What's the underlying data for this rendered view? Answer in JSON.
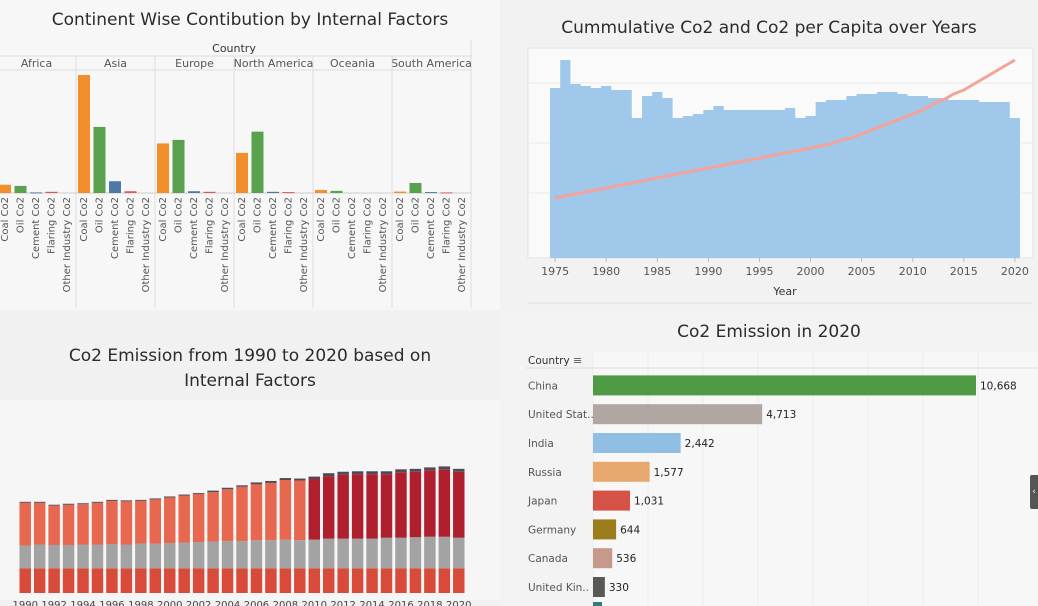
{
  "panels": {
    "p1": {
      "title": "Continent Wise Contibution by Internal Factors"
    },
    "p2": {
      "title": "Cummulative Co2 and Co2 per Capita over Years"
    },
    "p3": {
      "title": "Co2 Emission  from 1990 to 2020 based on Internal Factors"
    },
    "p4": {
      "title": "Co2 Emission in 2020"
    }
  },
  "colors": {
    "coal": "#f28e2b",
    "oil": "#59a14f",
    "cement": "#4e79a7",
    "flaring": "#e15759",
    "other": "#b07aa1",
    "area": "#9fc8eb",
    "line": "#f5a39a",
    "stack_top": "#4c4c57",
    "stack_gray": "#a3a3a3",
    "stack_base": "#d84b3a"
  },
  "chart_data": [
    {
      "type": "bar",
      "title": "Continent Wise Contibution by Internal Factors",
      "column_header": "Country",
      "groups": [
        "Africa",
        "Asia",
        "Europe",
        "North America",
        "Oceania",
        "South America"
      ],
      "categories": [
        "Coal Co2",
        "Oil Co2",
        "Cement Co2",
        "Flaring Co2",
        "Other Industry Co2"
      ],
      "series": [
        {
          "name": "Africa",
          "values": [
            0.07,
            0.06,
            0.005,
            0.01,
            0.0
          ]
        },
        {
          "name": "Asia",
          "values": [
            1.0,
            0.56,
            0.1,
            0.015,
            0.0
          ]
        },
        {
          "name": "Europe",
          "values": [
            0.42,
            0.45,
            0.015,
            0.01,
            0.0
          ]
        },
        {
          "name": "North America",
          "values": [
            0.34,
            0.52,
            0.01,
            0.008,
            0.0
          ]
        },
        {
          "name": "Oceania",
          "values": [
            0.025,
            0.018,
            0.0,
            0.0,
            0.0
          ]
        },
        {
          "name": "South America",
          "values": [
            0.012,
            0.085,
            0.008,
            0.005,
            0.0
          ]
        }
      ]
    },
    {
      "type": "area",
      "title": "Cummulative Co2 and Co2 per Capita over Years",
      "xlabel": "Year",
      "x_ticks": [
        "1975",
        "1980",
        "1985",
        "1990",
        "1995",
        "2000",
        "2005",
        "2010",
        "2015",
        "2020"
      ],
      "x": [
        1975,
        1976,
        1977,
        1978,
        1979,
        1980,
        1981,
        1982,
        1983,
        1984,
        1985,
        1986,
        1987,
        1988,
        1989,
        1990,
        1991,
        1992,
        1993,
        1994,
        1995,
        1996,
        1997,
        1998,
        1999,
        2000,
        2001,
        2002,
        2003,
        2004,
        2005,
        2006,
        2007,
        2008,
        2009,
        2010,
        2011,
        2012,
        2013,
        2014,
        2015,
        2016,
        2017,
        2018,
        2019,
        2020
      ],
      "series": [
        {
          "values": [
            0.85,
            0.99,
            0.87,
            0.86,
            0.85,
            0.86,
            0.84,
            0.84,
            0.7,
            0.81,
            0.83,
            0.8,
            0.7,
            0.71,
            0.72,
            0.74,
            0.76,
            0.74,
            0.74,
            0.74,
            0.74,
            0.74,
            0.74,
            0.75,
            0.7,
            0.71,
            0.78,
            0.79,
            0.79,
            0.81,
            0.82,
            0.82,
            0.83,
            0.83,
            0.82,
            0.81,
            0.81,
            0.8,
            0.8,
            0.79,
            0.79,
            0.79,
            0.78,
            0.78,
            0.78,
            0.7
          ]
        },
        {
          "values": [
            0.3,
            0.31,
            0.32,
            0.33,
            0.34,
            0.35,
            0.36,
            0.37,
            0.38,
            0.39,
            0.4,
            0.41,
            0.42,
            0.43,
            0.44,
            0.45,
            0.46,
            0.47,
            0.48,
            0.49,
            0.5,
            0.51,
            0.52,
            0.53,
            0.54,
            0.55,
            0.56,
            0.57,
            0.59,
            0.6,
            0.62,
            0.64,
            0.66,
            0.68,
            0.7,
            0.72,
            0.74,
            0.77,
            0.79,
            0.82,
            0.84,
            0.87,
            0.9,
            0.93,
            0.96,
            0.99
          ]
        }
      ]
    },
    {
      "type": "bar",
      "title": "Co2 Emission  from 1990 to 2020 based on Internal Factors",
      "x_ticks": [
        "1990",
        "1992",
        "1994",
        "1996",
        "1998",
        "2000",
        "2002",
        "2004",
        "2006",
        "2008",
        "2010",
        "2012",
        "2014",
        "2016",
        "2018",
        "2020"
      ],
      "x": [
        1990,
        1991,
        1992,
        1993,
        1994,
        1995,
        1996,
        1997,
        1998,
        1999,
        2000,
        2001,
        2002,
        2003,
        2004,
        2005,
        2006,
        2007,
        2008,
        2009,
        2010,
        2011,
        2012,
        2013,
        2014,
        2015,
        2016,
        2017,
        2018,
        2019,
        2020
      ],
      "series": [
        {
          "values": [
            0.51,
            0.51,
            0.51,
            0.51,
            0.51,
            0.51,
            0.51,
            0.51,
            0.51,
            0.51,
            0.51,
            0.51,
            0.51,
            0.51,
            0.51,
            0.51,
            0.51,
            0.51,
            0.51,
            0.51,
            0.51,
            0.51,
            0.51,
            0.51,
            0.51,
            0.51,
            0.51,
            0.51,
            0.51,
            0.51,
            0.51
          ]
        },
        {
          "values": [
            0.47,
            0.49,
            0.48,
            0.48,
            0.49,
            0.49,
            0.5,
            0.49,
            0.51,
            0.51,
            0.52,
            0.53,
            0.54,
            0.55,
            0.56,
            0.56,
            0.58,
            0.58,
            0.59,
            0.58,
            0.59,
            0.61,
            0.61,
            0.61,
            0.61,
            0.63,
            0.63,
            0.64,
            0.65,
            0.65,
            0.63
          ]
        },
        {
          "values": [
            0.88,
            0.86,
            0.81,
            0.83,
            0.83,
            0.86,
            0.89,
            0.89,
            0.88,
            0.91,
            0.94,
            0.97,
            0.99,
            1.02,
            1.07,
            1.12,
            1.15,
            1.18,
            1.23,
            1.23,
            1.25,
            1.29,
            1.32,
            1.33,
            1.33,
            1.31,
            1.35,
            1.35,
            1.37,
            1.39,
            1.36
          ]
        },
        {
          "values": [
            0.02,
            0.02,
            0.02,
            0.02,
            0.02,
            0.02,
            0.02,
            0.02,
            0.02,
            0.02,
            0.02,
            0.02,
            0.02,
            0.03,
            0.03,
            0.03,
            0.04,
            0.04,
            0.04,
            0.04,
            0.05,
            0.06,
            0.06,
            0.06,
            0.06,
            0.06,
            0.06,
            0.06,
            0.06,
            0.06,
            0.06
          ]
        }
      ]
    },
    {
      "type": "bar",
      "title": "Co2 Emission in 2020",
      "column_header": "Country",
      "categories": [
        "China",
        "United Stat..",
        "India",
        "Russia",
        "Japan",
        "Germany",
        "Canada",
        "United Kin.."
      ],
      "values": [
        10668,
        4713,
        2442,
        1577,
        1031,
        644,
        536,
        330
      ],
      "labels": [
        "10,668",
        "4,713",
        "2,442",
        "1,577",
        "1,031",
        "644",
        "536",
        "330"
      ],
      "colors": [
        "#4e9a45",
        "#b2a6a3",
        "#91bfe3",
        "#e6a86c",
        "#d55247",
        "#9b7d1d",
        "#c6998a",
        "#5a5757"
      ]
    }
  ]
}
